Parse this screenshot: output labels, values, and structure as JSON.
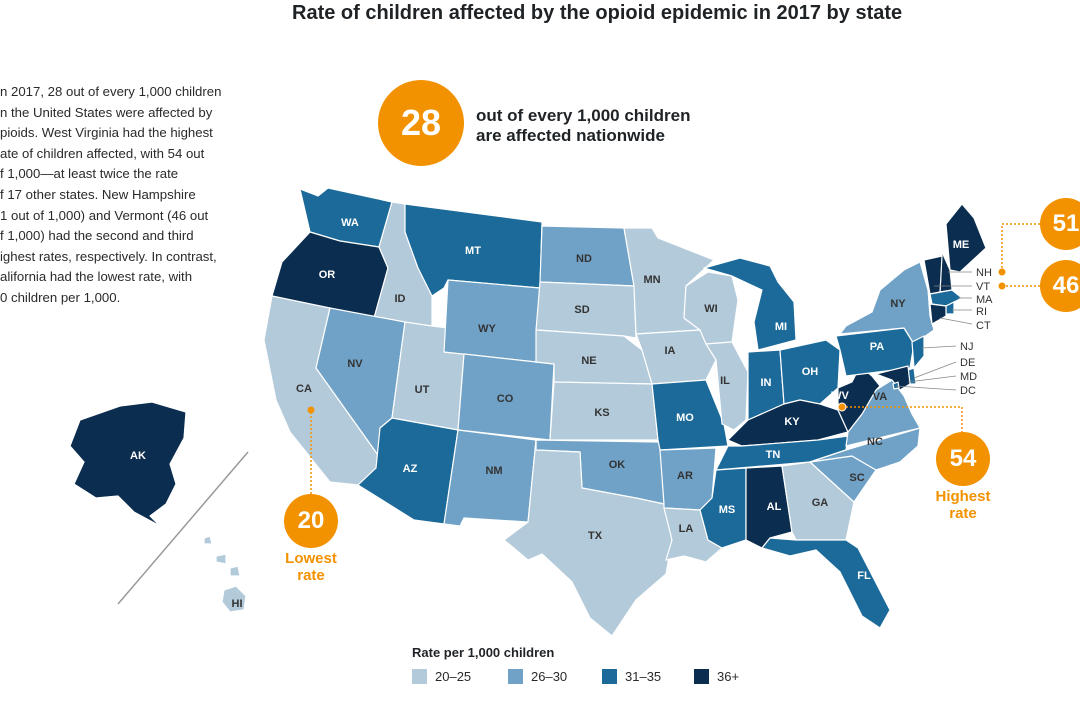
{
  "title": "Rate of children affected by the opioid epidemic in 2017 by state",
  "intro_lines": [
    "n 2017, 28 out of every 1,000 children",
    "n the United States were affected by",
    "pioids. West Virginia had the highest",
    "ate of children affected, with 54 out",
    "f 1,000—at least twice the rate",
    "f 17 other states. New Hampshire",
    "1 out of 1,000) and Vermont (46 out",
    "f 1,000) had the second and third",
    "ighest rates, respectively. In contrast,",
    "alifornia had the lowest rate, with",
    "0 children per 1,000."
  ],
  "national": {
    "value": "28",
    "line1": "out of every 1,000 children",
    "line2": "are affected nationwide"
  },
  "callouts": {
    "nh_value": "51",
    "vt_value": "46",
    "wv_value": "54",
    "wv_label_1": "Highest",
    "wv_label_2": "rate",
    "ca_value": "20",
    "ca_label_1": "Lowest",
    "ca_label_2": "rate"
  },
  "legend": {
    "title": "Rate per 1,000 children",
    "items": [
      {
        "label": "20–25",
        "color": "#b3cadb"
      },
      {
        "label": "26–30",
        "color": "#6fa2c6"
      },
      {
        "label": "31–35",
        "color": "#1c6a99"
      },
      {
        "label": "36+",
        "color": "#0b2d4f"
      }
    ]
  },
  "colors": {
    "c1": "#b3cadb",
    "c2": "#6fa2c6",
    "c3": "#1c6a99",
    "c4": "#0b2d4f",
    "accent": "#f39200"
  },
  "states": [
    {
      "abbr": "WA",
      "cat": 3
    },
    {
      "abbr": "OR",
      "cat": 4
    },
    {
      "abbr": "CA",
      "cat": 1
    },
    {
      "abbr": "ID",
      "cat": 1
    },
    {
      "abbr": "NV",
      "cat": 2
    },
    {
      "abbr": "UT",
      "cat": 1
    },
    {
      "abbr": "AZ",
      "cat": 3
    },
    {
      "abbr": "MT",
      "cat": 3
    },
    {
      "abbr": "WY",
      "cat": 2
    },
    {
      "abbr": "CO",
      "cat": 2
    },
    {
      "abbr": "NM",
      "cat": 2
    },
    {
      "abbr": "ND",
      "cat": 2
    },
    {
      "abbr": "SD",
      "cat": 1
    },
    {
      "abbr": "NE",
      "cat": 1
    },
    {
      "abbr": "KS",
      "cat": 1
    },
    {
      "abbr": "OK",
      "cat": 2
    },
    {
      "abbr": "TX",
      "cat": 1
    },
    {
      "abbr": "MN",
      "cat": 1
    },
    {
      "abbr": "IA",
      "cat": 1
    },
    {
      "abbr": "MO",
      "cat": 3
    },
    {
      "abbr": "AR",
      "cat": 2
    },
    {
      "abbr": "LA",
      "cat": 1
    },
    {
      "abbr": "WI",
      "cat": 1
    },
    {
      "abbr": "IL",
      "cat": 1
    },
    {
      "abbr": "MI",
      "cat": 3
    },
    {
      "abbr": "IN",
      "cat": 3
    },
    {
      "abbr": "OH",
      "cat": 3
    },
    {
      "abbr": "KY",
      "cat": 4
    },
    {
      "abbr": "TN",
      "cat": 3
    },
    {
      "abbr": "MS",
      "cat": 3
    },
    {
      "abbr": "AL",
      "cat": 4
    },
    {
      "abbr": "GA",
      "cat": 1
    },
    {
      "abbr": "FL",
      "cat": 3
    },
    {
      "abbr": "SC",
      "cat": 2
    },
    {
      "abbr": "NC",
      "cat": 2
    },
    {
      "abbr": "VA",
      "cat": 2
    },
    {
      "abbr": "WV",
      "cat": 4
    },
    {
      "abbr": "PA",
      "cat": 3
    },
    {
      "abbr": "NY",
      "cat": 2
    },
    {
      "abbr": "ME",
      "cat": 4
    },
    {
      "abbr": "NH",
      "cat": 4
    },
    {
      "abbr": "VT",
      "cat": 4
    },
    {
      "abbr": "MA",
      "cat": 3
    },
    {
      "abbr": "RI",
      "cat": 3
    },
    {
      "abbr": "CT",
      "cat": 4
    },
    {
      "abbr": "NJ",
      "cat": 3
    },
    {
      "abbr": "DE",
      "cat": 3
    },
    {
      "abbr": "MD",
      "cat": 4
    },
    {
      "abbr": "DC",
      "cat": 3
    },
    {
      "abbr": "AK",
      "cat": 4
    },
    {
      "abbr": "HI",
      "cat": 1
    }
  ]
}
